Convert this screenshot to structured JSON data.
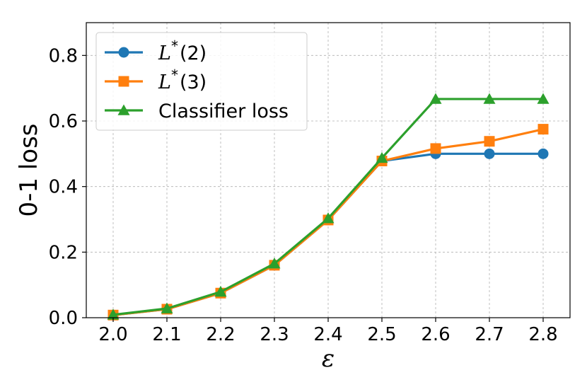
{
  "chart_data": {
    "type": "line",
    "title": "",
    "xlabel": "ε",
    "ylabel": "0-1 loss",
    "x": [
      2.0,
      2.1,
      2.2,
      2.3,
      2.4,
      2.5,
      2.6,
      2.7,
      2.8
    ],
    "x_tick_labels": [
      "2.0",
      "2.1",
      "2.2",
      "2.3",
      "2.4",
      "2.5",
      "2.6",
      "2.7",
      "2.8"
    ],
    "y_ticks": [
      0.0,
      0.2,
      0.4,
      0.6,
      0.8
    ],
    "y_tick_labels": [
      "0.0",
      "0.2",
      "0.4",
      "0.6",
      "0.8"
    ],
    "xlim": [
      1.95,
      2.85
    ],
    "ylim": [
      0.0,
      0.9
    ],
    "grid": true,
    "legend_position": "top-left",
    "series": [
      {
        "name": "L*(2)",
        "legend_base": "L",
        "legend_sup": "*",
        "legend_arg": "(2)",
        "marker": "circle",
        "color": "#1f77b4",
        "values": [
          0.008,
          0.026,
          0.075,
          0.16,
          0.298,
          0.478,
          0.5,
          0.5,
          0.5
        ]
      },
      {
        "name": "L*(3)",
        "legend_base": "L",
        "legend_sup": "*",
        "legend_arg": "(3)",
        "marker": "square",
        "color": "#ff7f0e",
        "values": [
          0.008,
          0.026,
          0.075,
          0.16,
          0.298,
          0.478,
          0.516,
          0.538,
          0.575
        ]
      },
      {
        "name": "Classifier loss",
        "marker": "triangle",
        "color": "#2ca02c",
        "values": [
          0.009,
          0.028,
          0.079,
          0.165,
          0.303,
          0.487,
          0.667,
          0.667,
          0.667
        ]
      }
    ]
  }
}
